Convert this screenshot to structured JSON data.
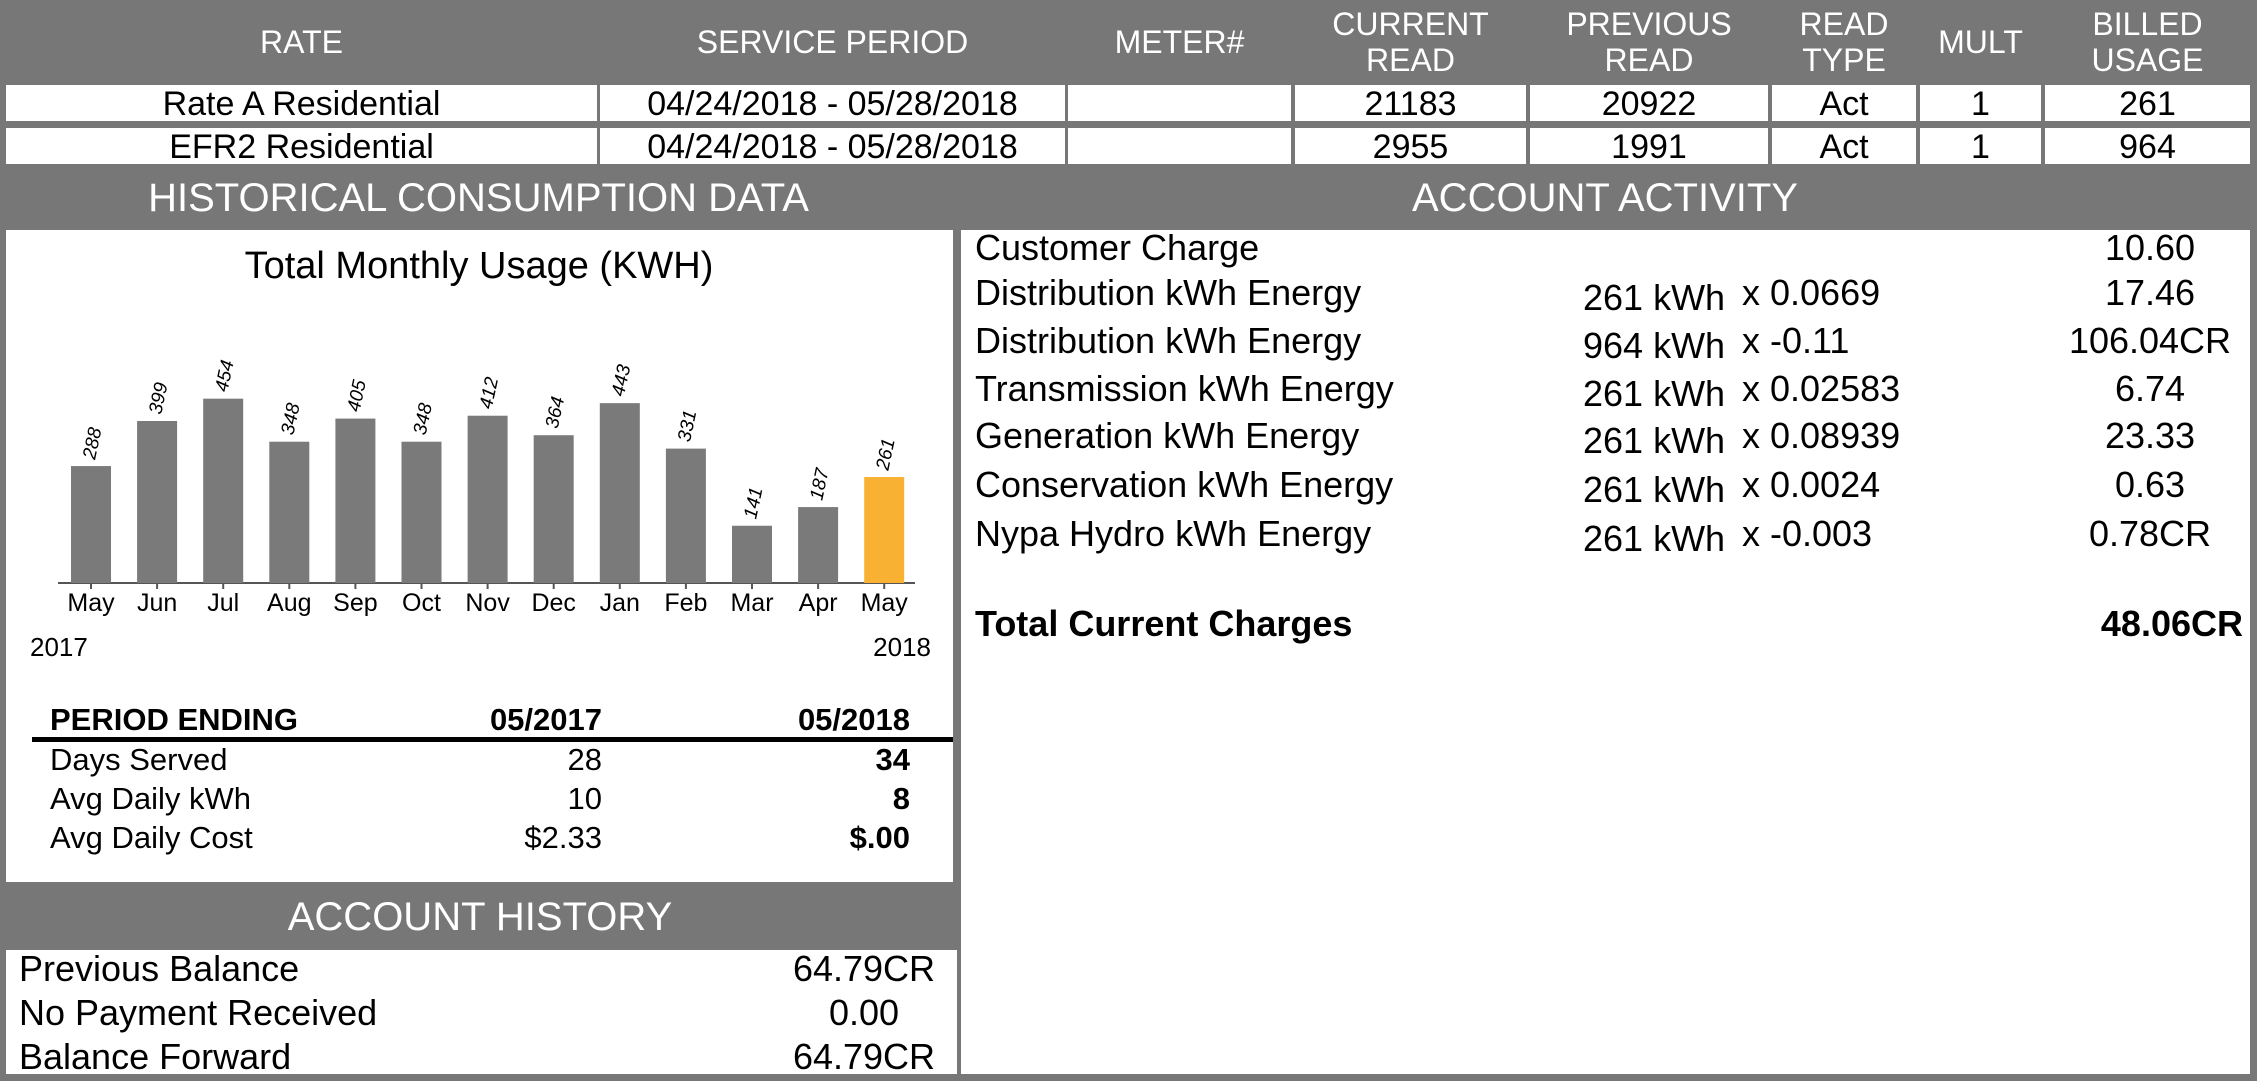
{
  "service_table": {
    "headers": [
      "RATE",
      "SERVICE PERIOD",
      "METER#",
      "CURRENT READ",
      "PREVIOUS READ",
      "READ TYPE",
      "MULT",
      "BILLED USAGE"
    ],
    "rows": [
      {
        "rate": "Rate A Residential",
        "service_period": "04/24/2018 - 05/28/2018",
        "current_read": "21183",
        "previous_read": "20922",
        "read_type": "Act",
        "mult": "1",
        "billed_usage": "261"
      },
      {
        "rate": "EFR2 Residential",
        "service_period": "04/24/2018 - 05/28/2018",
        "current_read": "2955",
        "previous_read": "1991",
        "read_type": "Act",
        "mult": "1",
        "billed_usage": "964"
      }
    ]
  },
  "historical": {
    "title": "HISTORICAL CONSUMPTION DATA",
    "year_labels": [
      "2017",
      "2018"
    ],
    "summary": {
      "headers": [
        "PERIOD ENDING",
        "05/2017",
        "05/2018"
      ],
      "rows": [
        [
          "Days Served",
          "28",
          "34"
        ],
        [
          "Avg Daily kWh",
          "10",
          "8"
        ],
        [
          "Avg Daily Cost",
          "$2.33",
          "$.00"
        ]
      ]
    }
  },
  "chart_data": {
    "type": "bar",
    "title": "Total Monthly Usage (KWH)",
    "categories": [
      "May",
      "Jun",
      "Jul",
      "Aug",
      "Sep",
      "Oct",
      "Nov",
      "Dec",
      "Jan",
      "Feb",
      "Mar",
      "Apr",
      "May"
    ],
    "values": [
      288,
      399,
      454,
      348,
      405,
      348,
      412,
      364,
      443,
      331,
      141,
      187,
      261
    ],
    "colors": [
      "#7a7a7a",
      "#7a7a7a",
      "#7a7a7a",
      "#7a7a7a",
      "#7a7a7a",
      "#7a7a7a",
      "#7a7a7a",
      "#7a7a7a",
      "#7a7a7a",
      "#7a7a7a",
      "#7a7a7a",
      "#7a7a7a",
      "#f9b133"
    ],
    "ylim": [
      0,
      500
    ]
  },
  "account_activity": {
    "title": "ACCOUNT ACTIVITY",
    "items": [
      {
        "label": "Customer Charge",
        "amount": "10.60"
      },
      {
        "label": "Distribution kWh Energy",
        "quantity": "261 kWh",
        "rate": "x 0.0669",
        "amount": "17.46"
      },
      {
        "label": "Distribution kWh Energy",
        "quantity": "964 kWh",
        "rate": "x -0.11",
        "amount": "106.04CR"
      },
      {
        "label": "Transmission kWh Energy",
        "quantity": "261 kWh",
        "rate": "x 0.02583",
        "amount": "6.74"
      },
      {
        "label": "Generation kWh Energy",
        "quantity": "261 kWh",
        "rate": "x 0.08939",
        "amount": "23.33"
      },
      {
        "label": "Conservation kWh Energy",
        "quantity": "261 kWh",
        "rate": "x 0.0024",
        "amount": "0.63"
      },
      {
        "label": "Nypa Hydro kWh Energy",
        "quantity": "261 kWh",
        "rate": "x -0.003",
        "amount": "0.78CR"
      }
    ],
    "total": {
      "label": "Total Current Charges",
      "amount": "48.06CR"
    }
  },
  "account_history": {
    "title": "ACCOUNT HISTORY",
    "rows": [
      {
        "label": "Previous Balance",
        "amount": "64.79CR"
      },
      {
        "label": "No Payment Received",
        "amount": "0.00"
      },
      {
        "label": "Balance Forward",
        "amount": "64.79CR"
      }
    ]
  }
}
